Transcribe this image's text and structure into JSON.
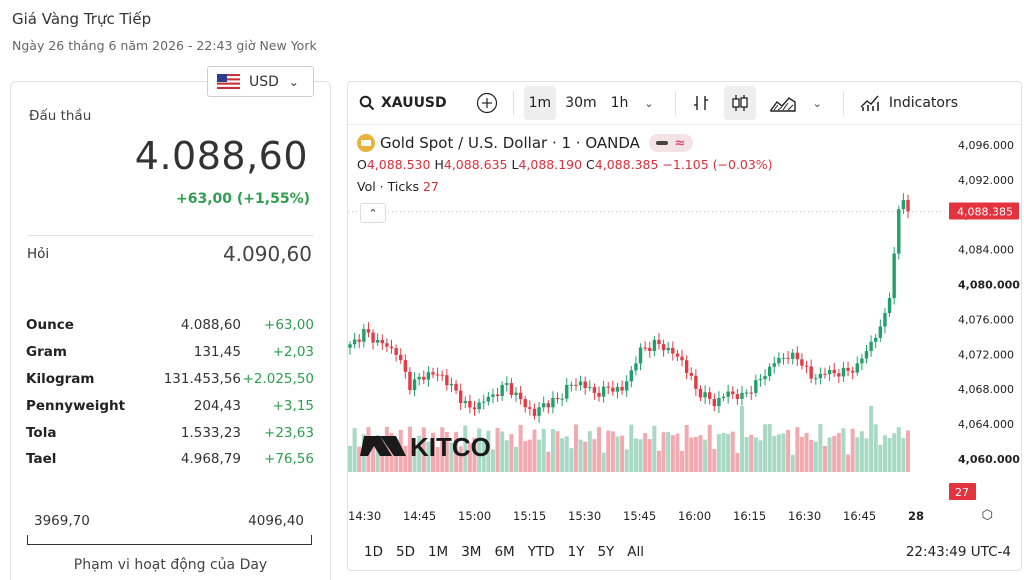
{
  "page": {
    "title": "Giá Vàng Trực Tiếp",
    "date": "Ngày 26 tháng 6 năm 2026 - 22:43 giờ New York"
  },
  "currency": {
    "label": "USD",
    "icon": "us-flag-icon"
  },
  "quote": {
    "bid_label": "Đấu thầu",
    "bid": "4.088,60",
    "change": "+63,00 (+1,55%)",
    "ask_label": "Hỏi",
    "ask": "4.090,60",
    "colors": {
      "positive": "#2e9e4f"
    }
  },
  "units": [
    {
      "name": "Ounce",
      "price": "4.088,60",
      "change": "+63,00"
    },
    {
      "name": "Gram",
      "price": "131,45",
      "change": "+2,03"
    },
    {
      "name": "Kilogram",
      "price": "131.453,56",
      "change": "+2.025,50"
    },
    {
      "name": "Pennyweight",
      "price": "204,43",
      "change": "+3,15"
    },
    {
      "name": "Tola",
      "price": "1.533,23",
      "change": "+23,63"
    },
    {
      "name": "Tael",
      "price": "4.968,79",
      "change": "+76,56"
    }
  ],
  "day_range": {
    "low": "3969,70",
    "high": "4096,40",
    "caption": "Phạm vi hoạt động của Day"
  },
  "toolbar": {
    "symbol": "XAUUSD",
    "intervals": [
      "1m",
      "30m",
      "1h"
    ],
    "active_interval": "1m",
    "indicators_label": "Indicators"
  },
  "legend": {
    "title": "Gold Spot / U.S. Dollar · 1 · OANDA",
    "o_label": "O",
    "o": "4,088.530",
    "h_label": "H",
    "h": "4,088.635",
    "l_label": "L",
    "l": "4,088.190",
    "c_label": "C",
    "c": "4,088.385",
    "change": "−1.105 (−0.03%)",
    "vol_label": "Vol · Ticks",
    "vol_value": "27"
  },
  "chart_data": {
    "type": "candlestick",
    "title": "Gold Spot / U.S. Dollar · 1 · OANDA",
    "y_ticks": [
      "4,096.000",
      "4,092.000",
      "4,088.000",
      "4,084.000",
      "4,080.000",
      "4,076.000",
      "4,072.000",
      "4,068.000",
      "4,064.000",
      "4,060.000"
    ],
    "y_tick_values": [
      4096,
      4092,
      4088,
      4084,
      4080,
      4076,
      4072,
      4068,
      4064,
      4060
    ],
    "ylim": [
      4058.5,
      4097.5
    ],
    "x_ticks": [
      "14:30",
      "14:45",
      "15:00",
      "15:15",
      "15:30",
      "15:45",
      "16:00",
      "16:15",
      "16:30",
      "16:45",
      "28"
    ],
    "last_price_label": "4,088.385",
    "last_price": 4088.385,
    "last_volume_label": "27",
    "close_anchors": [
      [
        0,
        4072.9
      ],
      [
        3,
        4074.6
      ],
      [
        5,
        4073.8
      ],
      [
        10,
        4072.3
      ],
      [
        13,
        4068.5
      ],
      [
        17,
        4069.8
      ],
      [
        20,
        4069.5
      ],
      [
        24,
        4067.0
      ],
      [
        26,
        4065.7
      ],
      [
        31,
        4067.3
      ],
      [
        34,
        4068.5
      ],
      [
        37,
        4066.7
      ],
      [
        40,
        4065.1
      ],
      [
        42,
        4066.3
      ],
      [
        45,
        4066.7
      ],
      [
        47,
        4068.2
      ],
      [
        50,
        4068.8
      ],
      [
        53,
        4067.5
      ],
      [
        57,
        4068.2
      ],
      [
        59,
        4067.8
      ],
      [
        63,
        4072.4
      ],
      [
        66,
        4073.2
      ],
      [
        68,
        4072.9
      ],
      [
        72,
        4071.3
      ],
      [
        75,
        4068.0
      ],
      [
        79,
        4066.4
      ],
      [
        82,
        4067.6
      ],
      [
        85,
        4067.1
      ],
      [
        89,
        4069.1
      ],
      [
        92,
        4071.1
      ],
      [
        95,
        4071.9
      ],
      [
        98,
        4071.2
      ],
      [
        100,
        4069.2
      ],
      [
        103,
        4069.9
      ],
      [
        107,
        4069.9
      ],
      [
        110,
        4070.6
      ],
      [
        113,
        4073.4
      ],
      [
        115,
        4074.8
      ],
      [
        117,
        4078.9
      ],
      [
        118,
        4083.0
      ],
      [
        119,
        4088.7
      ],
      [
        120,
        4089.7
      ],
      [
        121,
        4088.4
      ]
    ],
    "candle_count": 122,
    "volume_max": 100
  },
  "range_buttons": [
    "1D",
    "5D",
    "1M",
    "3M",
    "6M",
    "YTD",
    "1Y",
    "5Y",
    "All"
  ],
  "clock": "22:43:49 UTC-4",
  "watermark": "KITCO",
  "colors": {
    "up": "#22a06b",
    "down": "#e23b46",
    "vol_up": "#a8d9c4",
    "vol_down": "#f2aab0",
    "last_price": "#e2333f"
  }
}
